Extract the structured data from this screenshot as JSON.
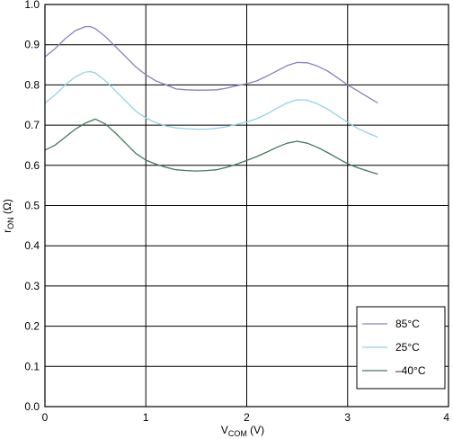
{
  "chart_data": {
    "type": "line",
    "xlabel_main": "V",
    "xlabel_sub": "COM",
    "xlabel_unit": " (V)",
    "ylabel_main": "r",
    "ylabel_sub": "ON",
    "ylabel_unit": " (Ω)",
    "xlim": [
      0,
      4
    ],
    "ylim": [
      0,
      1.0
    ],
    "x_ticks": [
      0,
      1,
      2,
      3,
      4
    ],
    "x_tick_labels": [
      "0",
      "1",
      "2",
      "3",
      "4"
    ],
    "y_ticks": [
      0,
      0.1,
      0.2,
      0.3,
      0.4,
      0.5,
      0.6,
      0.7,
      0.8,
      0.9,
      1.0
    ],
    "y_tick_labels": [
      "0.0",
      "0.1",
      "0.2",
      "0.3",
      "0.4",
      "0.5",
      "0.6",
      "0.7",
      "0.8",
      "0.9",
      "1.0"
    ],
    "grid": true,
    "legend_position": "bottom-right",
    "x": [
      0,
      0.1,
      0.2,
      0.3,
      0.4,
      0.45,
      0.5,
      0.6,
      0.7,
      0.8,
      0.9,
      1.0,
      1.1,
      1.2,
      1.3,
      1.4,
      1.5,
      1.6,
      1.7,
      1.8,
      1.9,
      2.0,
      2.1,
      2.2,
      2.3,
      2.4,
      2.5,
      2.6,
      2.7,
      2.8,
      2.9,
      3.0,
      3.1,
      3.2,
      3.3
    ],
    "series": [
      {
        "name": "85°C",
        "color": "#8a7fc0",
        "values": [
          0.87,
          0.89,
          0.915,
          0.935,
          0.945,
          0.945,
          0.94,
          0.92,
          0.895,
          0.87,
          0.845,
          0.825,
          0.81,
          0.8,
          0.79,
          0.788,
          0.787,
          0.787,
          0.788,
          0.792,
          0.798,
          0.803,
          0.81,
          0.822,
          0.835,
          0.848,
          0.856,
          0.855,
          0.847,
          0.835,
          0.818,
          0.8,
          0.785,
          0.77,
          0.755
        ]
      },
      {
        "name": "25°C",
        "color": "#8fd3ea",
        "values": [
          0.755,
          0.775,
          0.8,
          0.82,
          0.832,
          0.833,
          0.83,
          0.81,
          0.785,
          0.76,
          0.735,
          0.718,
          0.706,
          0.698,
          0.693,
          0.691,
          0.69,
          0.69,
          0.692,
          0.696,
          0.702,
          0.708,
          0.716,
          0.728,
          0.742,
          0.755,
          0.763,
          0.762,
          0.753,
          0.74,
          0.724,
          0.707,
          0.692,
          0.68,
          0.67
        ]
      },
      {
        "name": "–40°C",
        "color": "#3f7a5c",
        "values": [
          0.638,
          0.65,
          0.67,
          0.69,
          0.705,
          0.71,
          0.715,
          0.703,
          0.68,
          0.655,
          0.63,
          0.613,
          0.603,
          0.595,
          0.589,
          0.587,
          0.586,
          0.587,
          0.589,
          0.595,
          0.603,
          0.612,
          0.622,
          0.633,
          0.645,
          0.655,
          0.66,
          0.655,
          0.645,
          0.632,
          0.618,
          0.604,
          0.594,
          0.586,
          0.578
        ]
      }
    ]
  }
}
